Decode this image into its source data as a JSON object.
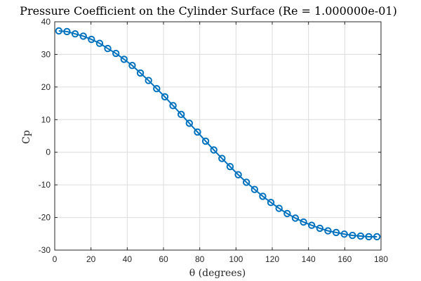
{
  "chart_data": {
    "type": "line",
    "title": "Pressure Coefficient on the Cylinder Surface (Re = 1.000000e-01)",
    "xlabel": "θ (degrees)",
    "ylabel": "Cp",
    "xlim": [
      0,
      180
    ],
    "ylim": [
      -30,
      40
    ],
    "xticks": [
      0,
      20,
      40,
      60,
      80,
      100,
      120,
      140,
      160,
      180
    ],
    "yticks": [
      -30,
      -20,
      -10,
      0,
      10,
      20,
      30,
      40
    ],
    "grid": true,
    "series": [
      {
        "color": "#0072bd",
        "marker": "circle",
        "x": [
          2.25,
          6.75,
          11.25,
          15.75,
          20.25,
          24.75,
          29.25,
          33.75,
          38.25,
          42.75,
          47.25,
          51.75,
          56.25,
          60.75,
          65.25,
          69.75,
          74.25,
          78.75,
          83.25,
          87.75,
          92.25,
          96.75,
          101.25,
          105.75,
          110.25,
          114.75,
          119.25,
          123.75,
          128.25,
          132.75,
          137.25,
          141.75,
          146.25,
          150.75,
          155.25,
          159.75,
          164.25,
          168.75,
          173.25,
          177.75
        ],
        "y": [
          37.2,
          37.0,
          36.3,
          35.6,
          34.6,
          33.4,
          31.8,
          30.3,
          28.5,
          26.6,
          24.3,
          22.0,
          19.5,
          17.0,
          14.3,
          11.6,
          8.9,
          6.2,
          3.4,
          0.7,
          -1.9,
          -4.4,
          -6.9,
          -9.2,
          -11.4,
          -13.5,
          -15.4,
          -17.2,
          -18.8,
          -20.2,
          -21.4,
          -22.4,
          -23.3,
          -24.1,
          -24.6,
          -25.1,
          -25.5,
          -25.7,
          -25.9,
          -25.9
        ]
      }
    ]
  }
}
